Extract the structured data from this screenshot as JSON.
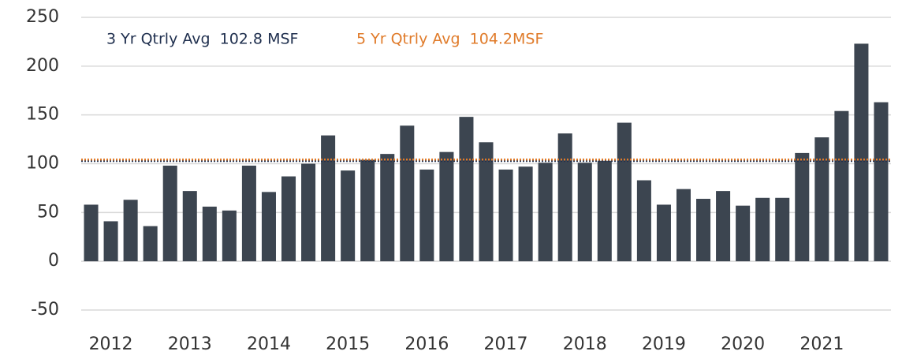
{
  "chart_data": {
    "type": "bar",
    "categories": [
      null,
      "2012",
      null,
      null,
      null,
      "2013",
      null,
      null,
      null,
      "2014",
      null,
      null,
      null,
      "2015",
      null,
      null,
      null,
      "2016",
      null,
      null,
      null,
      "2017",
      null,
      null,
      null,
      "2018",
      null,
      null,
      null,
      "2019",
      null,
      null,
      null,
      "2020",
      null,
      null,
      null,
      "2021",
      null,
      null,
      null
    ],
    "values": [
      58,
      41,
      63,
      36,
      98,
      72,
      56,
      52,
      98,
      71,
      87,
      100,
      129,
      93,
      104,
      110,
      139,
      94,
      112,
      148,
      122,
      94,
      97,
      101,
      131,
      101,
      103,
      142,
      83,
      58,
      74,
      64,
      72,
      57,
      65,
      65,
      111,
      127,
      154,
      223,
      163
    ],
    "color": "#3c4550",
    "ylim": [
      -50,
      250
    ],
    "yticks": [
      -50,
      0,
      50,
      100,
      150,
      200,
      250
    ],
    "grid": true,
    "reference_lines": [
      {
        "label": "3 Yr Qtrly Avg  102.8 MSF",
        "value": 102.8,
        "color": "#1f2f4e"
      },
      {
        "label": "5 Yr Qtrly Avg  104.2MSF",
        "value": 104.2,
        "color": "#e07b2a"
      }
    ]
  }
}
